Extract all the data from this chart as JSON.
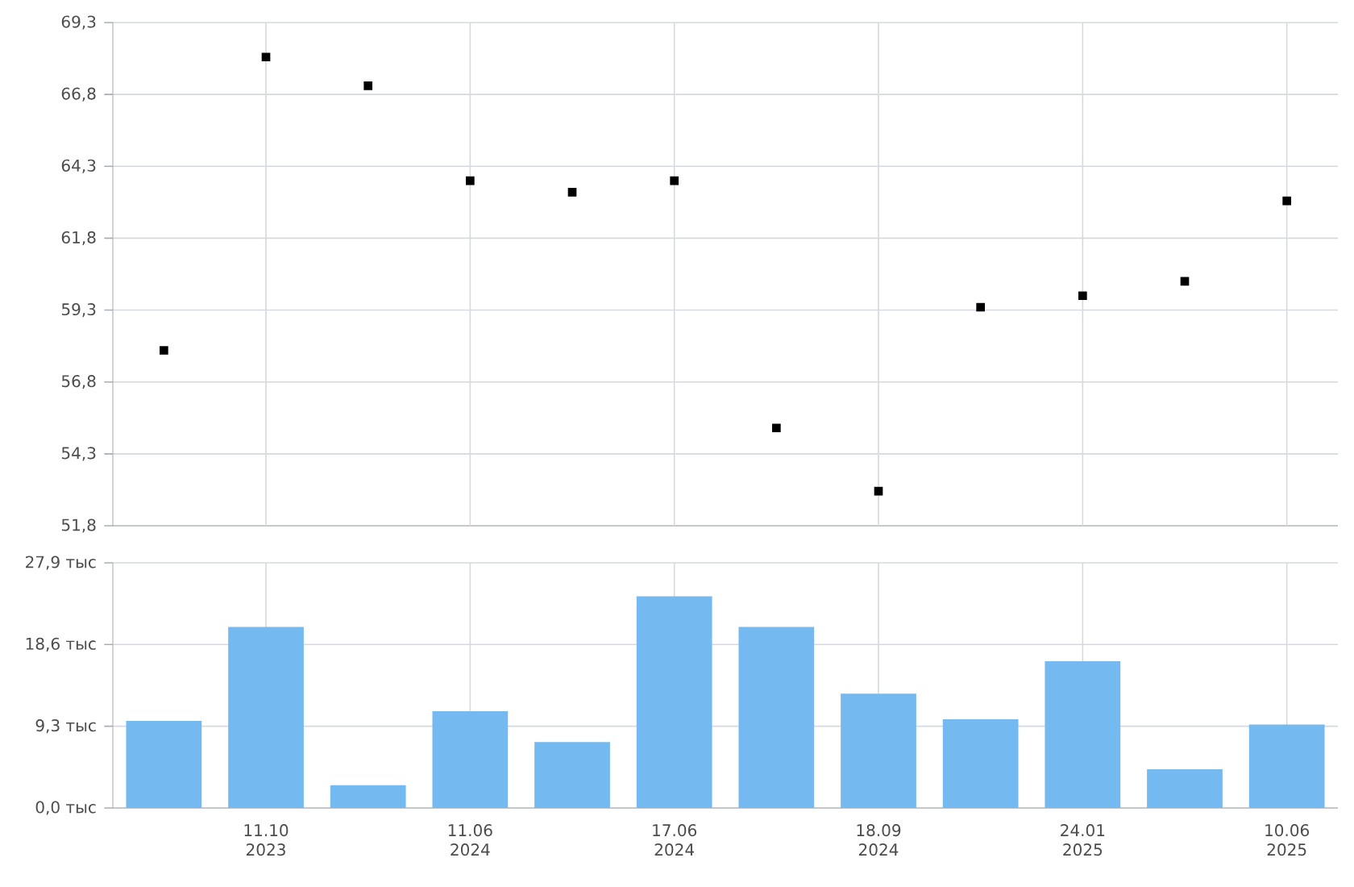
{
  "chart_data": [
    {
      "type": "scatter",
      "categories": [
        null,
        null,
        null,
        null,
        null,
        null,
        null,
        null,
        null,
        null,
        null,
        null
      ],
      "values": [
        57.9,
        68.1,
        67.1,
        63.8,
        63.4,
        63.8,
        55.2,
        53.0,
        59.4,
        59.8,
        60.3,
        63.1
      ],
      "color": "#000000",
      "marker": "square",
      "ylim": [
        51.8,
        69.3
      ],
      "yticks": [
        {
          "value": 51.8,
          "label": "51,8"
        },
        {
          "value": 54.3,
          "label": "54,3"
        },
        {
          "value": 56.8,
          "label": "56,8"
        },
        {
          "value": 59.3,
          "label": "59,3"
        },
        {
          "value": 61.8,
          "label": "61,8"
        },
        {
          "value": 64.3,
          "label": "64,3"
        },
        {
          "value": 66.8,
          "label": "66,8"
        },
        {
          "value": 69.3,
          "label": "69,3"
        }
      ],
      "grid": true,
      "tick_labels": "y"
    },
    {
      "type": "bar",
      "categories": [
        null,
        "11.10 2023",
        null,
        "11.06 2024",
        null,
        "17.06 2024",
        null,
        "18.09 2024",
        null,
        "24.01 2025",
        null,
        "10.06 2025"
      ],
      "values": [
        9.9,
        20.6,
        2.6,
        11.0,
        7.5,
        24.1,
        20.6,
        13.0,
        10.1,
        16.7,
        4.4,
        9.5
      ],
      "color": "#74b9ef",
      "ylim": [
        0,
        27.9
      ],
      "yticks": [
        {
          "value": 0,
          "label": "0,0 тыс"
        },
        {
          "value": 9.3,
          "label": "9,3 тыс"
        },
        {
          "value": 18.6,
          "label": "18,6 тыс"
        },
        {
          "value": 27.9,
          "label": "27,9 тыс"
        }
      ],
      "grid": true
    }
  ]
}
